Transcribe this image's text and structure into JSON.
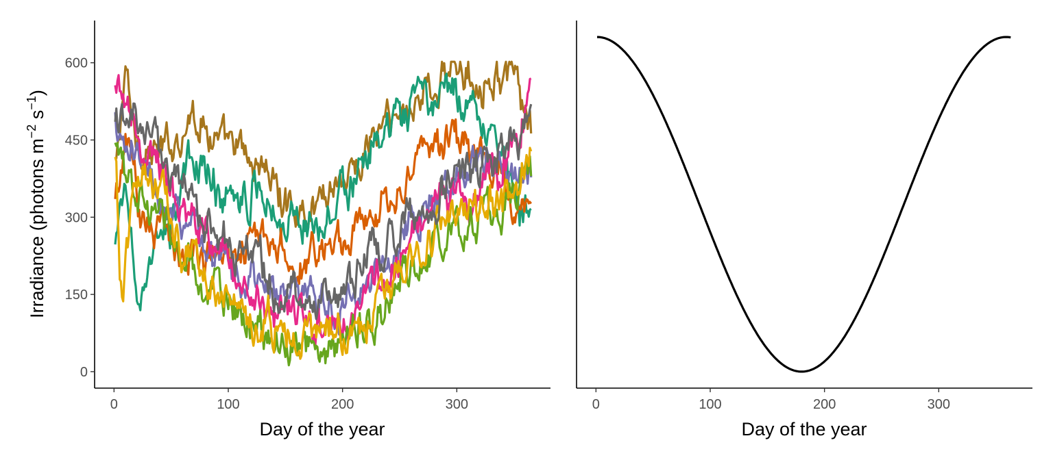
{
  "chart_data": [
    {
      "type": "line",
      "xlabel": "Day of the year",
      "ylabel": "Irradiance (photons m",
      "ylabel_sup1": "−2",
      "ylabel_mid": " s",
      "ylabel_sup2": "−1",
      "ylabel_end": ")",
      "xlim": [
        -17,
        382
      ],
      "ylim": [
        -32,
        682
      ],
      "x_ticks": [
        0,
        100,
        200,
        300
      ],
      "y_ticks": [
        0,
        150,
        300,
        450,
        600
      ],
      "x_tick_labels": [
        "0",
        "100",
        "200",
        "300"
      ],
      "y_tick_labels": [
        "0",
        "150",
        "300",
        "450",
        "600"
      ],
      "grid": false,
      "legend": "none",
      "day_range": [
        1,
        365
      ],
      "series": [
        {
          "color": "#A6761D",
          "anchors": [
            [
              1,
              400
            ],
            [
              10,
              560
            ],
            [
              20,
              450
            ],
            [
              40,
              420
            ],
            [
              70,
              500
            ],
            [
              100,
              430
            ],
            [
              130,
              400
            ],
            [
              150,
              330
            ],
            [
              170,
              320
            ],
            [
              200,
              380
            ],
            [
              240,
              480
            ],
            [
              270,
              540
            ],
            [
              300,
              590
            ],
            [
              330,
              580
            ],
            [
              350,
              560
            ],
            [
              365,
              470
            ]
          ]
        },
        {
          "color": "#1B9E77",
          "anchors": [
            [
              1,
              240
            ],
            [
              10,
              350
            ],
            [
              25,
              130
            ],
            [
              40,
              250
            ],
            [
              70,
              400
            ],
            [
              100,
              350
            ],
            [
              130,
              360
            ],
            [
              150,
              300
            ],
            [
              170,
              290
            ],
            [
              200,
              350
            ],
            [
              240,
              460
            ],
            [
              270,
              520
            ],
            [
              300,
              530
            ],
            [
              330,
              490
            ],
            [
              350,
              350
            ],
            [
              365,
              310
            ]
          ]
        },
        {
          "color": "#D95F02",
          "anchors": [
            [
              1,
              320
            ],
            [
              10,
              450
            ],
            [
              25,
              300
            ],
            [
              50,
              260
            ],
            [
              80,
              230
            ],
            [
              100,
              240
            ],
            [
              120,
              270
            ],
            [
              140,
              230
            ],
            [
              160,
              200
            ],
            [
              175,
              230
            ],
            [
              200,
              270
            ],
            [
              230,
              320
            ],
            [
              260,
              400
            ],
            [
              290,
              450
            ],
            [
              320,
              420
            ],
            [
              350,
              330
            ],
            [
              365,
              275
            ]
          ]
        },
        {
          "color": "#7570B3",
          "anchors": [
            [
              1,
              480
            ],
            [
              10,
              420
            ],
            [
              30,
              380
            ],
            [
              60,
              300
            ],
            [
              90,
              220
            ],
            [
              120,
              180
            ],
            [
              150,
              150
            ],
            [
              180,
              120
            ],
            [
              210,
              150
            ],
            [
              240,
              230
            ],
            [
              270,
              330
            ],
            [
              300,
              380
            ],
            [
              330,
              400
            ],
            [
              350,
              380
            ],
            [
              365,
              360
            ]
          ]
        },
        {
          "color": "#E7298A",
          "anchors": [
            [
              1,
              540
            ],
            [
              10,
              500
            ],
            [
              30,
              430
            ],
            [
              60,
              320
            ],
            [
              90,
              230
            ],
            [
              120,
              170
            ],
            [
              150,
              110
            ],
            [
              180,
              100
            ],
            [
              210,
              120
            ],
            [
              240,
              200
            ],
            [
              270,
              300
            ],
            [
              300,
              340
            ],
            [
              330,
              380
            ],
            [
              350,
              420
            ],
            [
              365,
              560
            ]
          ]
        },
        {
          "color": "#66A61E",
          "anchors": [
            [
              1,
              420
            ],
            [
              10,
              390
            ],
            [
              30,
              330
            ],
            [
              60,
              230
            ],
            [
              90,
              150
            ],
            [
              120,
              90
            ],
            [
              150,
              55
            ],
            [
              170,
              45
            ],
            [
              200,
              60
            ],
            [
              230,
              120
            ],
            [
              260,
              200
            ],
            [
              290,
              250
            ],
            [
              320,
              300
            ],
            [
              350,
              330
            ],
            [
              365,
              380
            ]
          ]
        },
        {
          "color": "#E6AB02",
          "anchors": [
            [
              1,
              440
            ],
            [
              6,
              160
            ],
            [
              20,
              380
            ],
            [
              40,
              340
            ],
            [
              70,
              230
            ],
            [
              100,
              150
            ],
            [
              130,
              100
            ],
            [
              160,
              65
            ],
            [
              180,
              60
            ],
            [
              210,
              75
            ],
            [
              240,
              150
            ],
            [
              270,
              240
            ],
            [
              300,
              290
            ],
            [
              330,
              330
            ],
            [
              350,
              320
            ],
            [
              365,
              420
            ]
          ]
        },
        {
          "color": "#666666",
          "anchors": [
            [
              1,
              500
            ],
            [
              10,
              480
            ],
            [
              30,
              440
            ],
            [
              60,
              360
            ],
            [
              90,
              260
            ],
            [
              120,
              210
            ],
            [
              150,
              170
            ],
            [
              170,
              140
            ],
            [
              200,
              160
            ],
            [
              230,
              230
            ],
            [
              260,
              300
            ],
            [
              290,
              370
            ],
            [
              320,
              400
            ],
            [
              350,
              450
            ],
            [
              365,
              480
            ]
          ]
        }
      ]
    },
    {
      "type": "line",
      "xlabel": "Day of the year",
      "xlim": [
        -17,
        382
      ],
      "ylim": [
        -32,
        682
      ],
      "x_ticks": [
        0,
        100,
        200,
        300
      ],
      "x_tick_labels": [
        "0",
        "100",
        "200",
        "300"
      ],
      "grid": false,
      "legend": "none",
      "series": [
        {
          "color": "#000000",
          "function": "cosine",
          "peak_value": 650,
          "trough_value": 0,
          "peak_day": 1,
          "trough_day": 180,
          "x_range": [
            1,
            363
          ]
        }
      ]
    }
  ]
}
